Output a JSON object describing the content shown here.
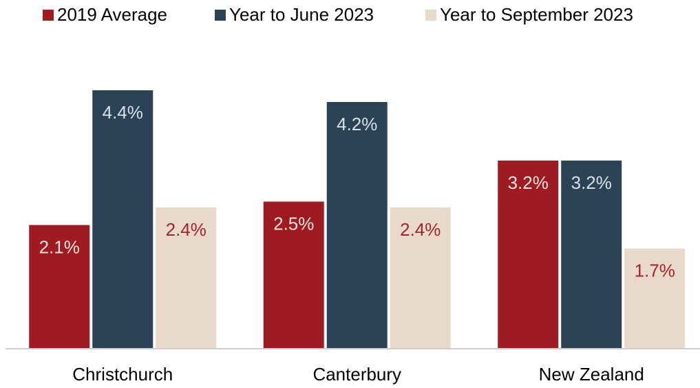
{
  "chart_data": {
    "type": "bar",
    "categories": [
      "Christchurch",
      "Canterbury",
      "New Zealand"
    ],
    "series": [
      {
        "name": "2019 Average",
        "color": "#9e1c21",
        "label_color": "#f3e2dc",
        "values": [
          2.1,
          2.5,
          3.2
        ],
        "value_labels": [
          "2.1%",
          "2.5%",
          "3.2%"
        ]
      },
      {
        "name": "Year to June 2023",
        "color": "#2c4356",
        "label_color": "#d6e2e6",
        "values": [
          4.4,
          4.2,
          3.2
        ],
        "value_labels": [
          "4.4%",
          "4.2%",
          "3.2%"
        ]
      },
      {
        "name": "Year to September 2023",
        "color": "#e9d9ca",
        "label_color": "#a3242a",
        "values": [
          2.4,
          2.4,
          1.7
        ],
        "value_labels": [
          "2.4%",
          "2.4%",
          "1.7%"
        ]
      }
    ],
    "ylim": [
      0,
      5
    ],
    "legend": "top"
  }
}
